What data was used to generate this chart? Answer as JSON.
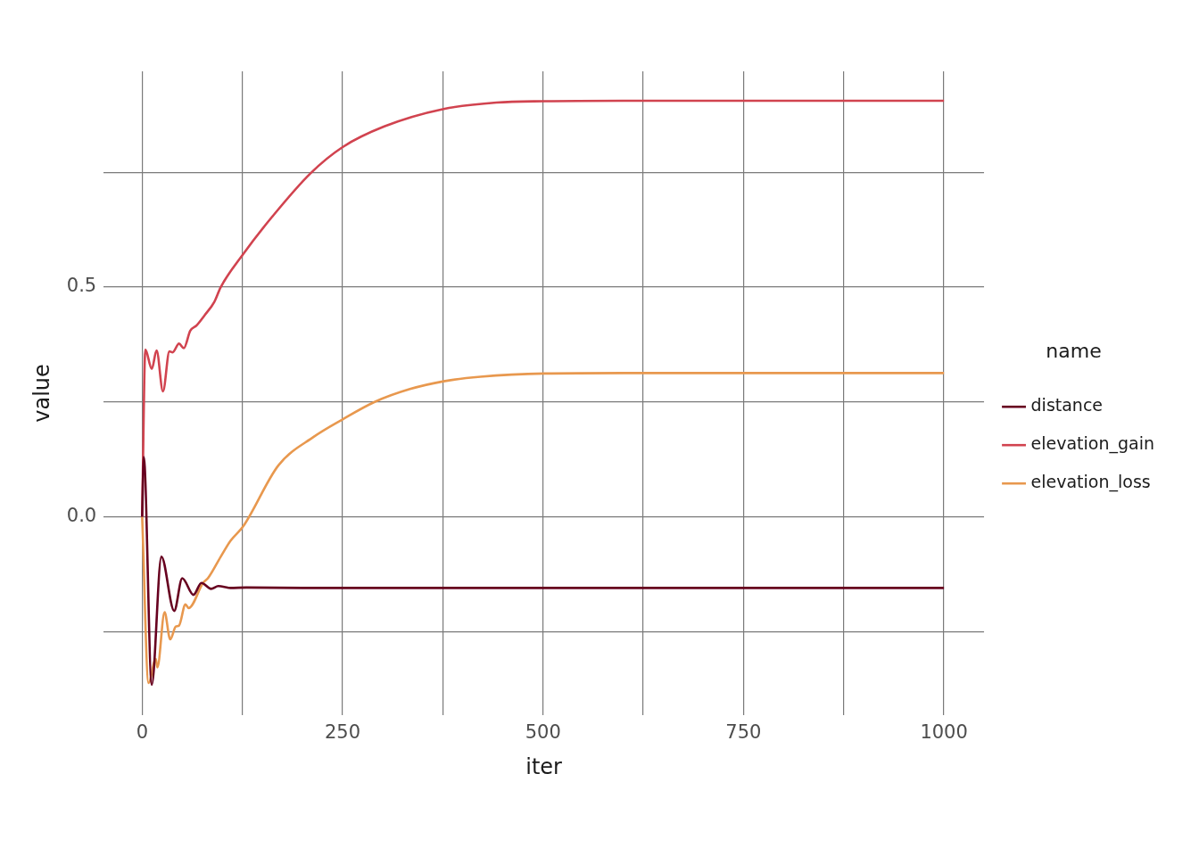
{
  "chart_data": {
    "type": "line",
    "xlabel": "iter",
    "ylabel": "value",
    "legend_title": "name",
    "legend": "right",
    "grid": true,
    "marker": "none",
    "xlim": [
      -48,
      1050
    ],
    "ylim": [
      -0.432,
      0.97
    ],
    "xticks": [
      0,
      {
        "value": 125,
        "label": null
      },
      250,
      {
        "value": 375,
        "label": null
      },
      500,
      {
        "value": 625,
        "label": null
      },
      750,
      {
        "value": 875,
        "label": null
      },
      1000
    ],
    "yticks": [
      {
        "value": -0.25,
        "label": null
      },
      {
        "value": 0,
        "label": "0.0"
      },
      {
        "value": 0.25,
        "label": null
      },
      {
        "value": 0.5,
        "label": "0.5"
      },
      {
        "value": 0.75,
        "label": null
      }
    ],
    "series": [
      {
        "name": "distance",
        "color": "#67001f",
        "x": [
          0,
          2,
          12,
          24,
          40,
          50,
          64,
          74,
          86,
          95,
          110,
          130,
          200,
          400,
          600,
          800,
          1000
        ],
        "values": [
          0,
          0.13,
          -0.366,
          -0.087,
          -0.205,
          -0.134,
          -0.17,
          -0.144,
          -0.157,
          -0.151,
          -0.155,
          -0.154,
          -0.155,
          -0.155,
          -0.155,
          -0.155,
          -0.155
        ]
      },
      {
        "name": "elevation_gain",
        "color": "#d1434f",
        "x": [
          0,
          4,
          12,
          18,
          26,
          34,
          38,
          46,
          52,
          60,
          68,
          78,
          90,
          98,
          126,
          162,
          210,
          250,
          302,
          376,
          442,
          502,
          600,
          800,
          1000
        ],
        "values": [
          0,
          0.364,
          0.322,
          0.362,
          0.273,
          0.36,
          0.358,
          0.377,
          0.367,
          0.405,
          0.417,
          0.439,
          0.468,
          0.5,
          0.572,
          0.653,
          0.748,
          0.805,
          0.85,
          0.888,
          0.902,
          0.905,
          0.906,
          0.906,
          0.906
        ]
      },
      {
        "name": "elevation_loss",
        "color": "#e8984e",
        "x": [
          0,
          8,
          17,
          19,
          28,
          35,
          42,
          46,
          54,
          58,
          76,
          82,
          98,
          110,
          126,
          170,
          214,
          250,
          290,
          334,
          376,
          422,
          502,
          600,
          800,
          1000
        ],
        "values": [
          0,
          -0.362,
          -0.31,
          -0.328,
          -0.208,
          -0.267,
          -0.239,
          -0.237,
          -0.191,
          -0.199,
          -0.144,
          -0.134,
          -0.087,
          -0.053,
          -0.021,
          0.112,
          0.174,
          0.212,
          0.25,
          0.278,
          0.295,
          0.305,
          0.312,
          0.313,
          0.313,
          0.313
        ]
      }
    ]
  }
}
